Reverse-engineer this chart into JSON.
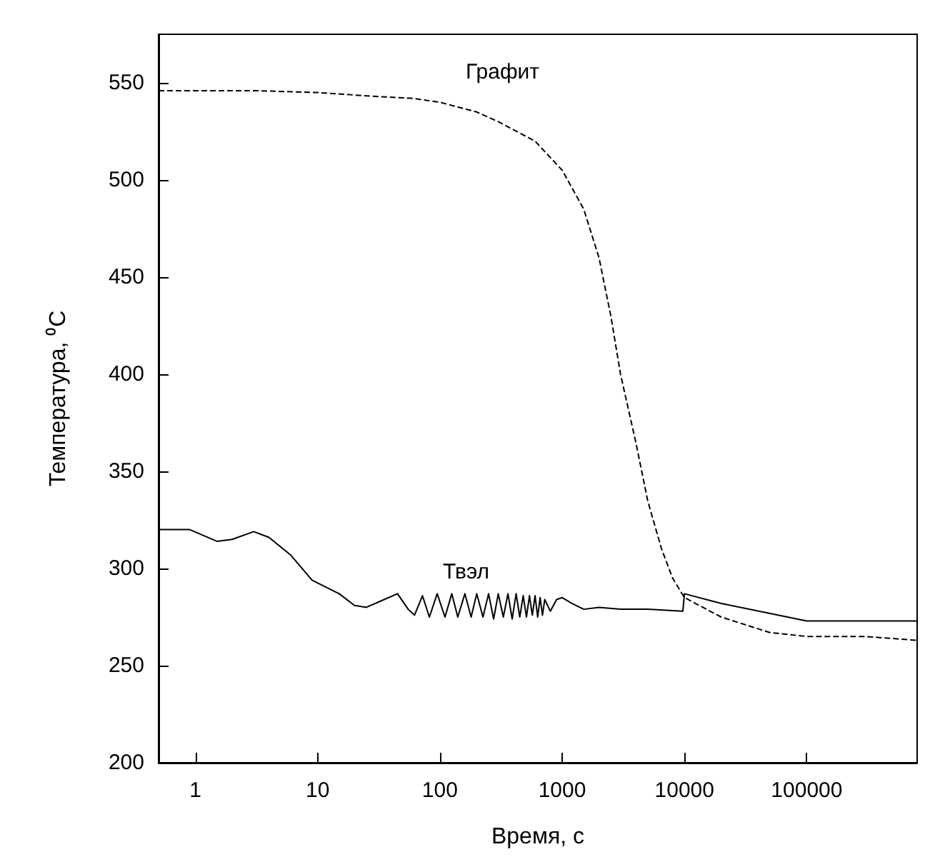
{
  "chart_data": {
    "type": "line",
    "xlabel": "Время, с",
    "ylabel": "Температура, ⁰C",
    "log": "x",
    "xlim": [
      0.5,
      800000
    ],
    "xticks": [
      1,
      10,
      100,
      1000,
      10000,
      100000
    ],
    "ylim": [
      200,
      575
    ],
    "yticks": [
      200,
      250,
      300,
      350,
      400,
      450,
      500,
      550
    ],
    "grid": false,
    "marker": "none",
    "annotations": [
      "Графит",
      "Твэл"
    ],
    "series": [
      {
        "color": "#000000",
        "line_style": "dashed",
        "x": [
          0.5,
          3,
          10,
          30,
          60,
          100,
          200,
          300,
          600,
          1000,
          1500,
          2000,
          2500,
          3000,
          4000,
          5000,
          6500,
          8000,
          10000,
          20000,
          50000,
          100000,
          300000,
          800000
        ],
        "values": [
          546,
          546,
          545,
          543,
          542,
          540,
          535,
          530,
          520,
          505,
          485,
          460,
          430,
          400,
          365,
          335,
          310,
          295,
          285,
          275,
          267,
          265,
          265,
          263
        ]
      },
      {
        "color": "#000000",
        "line_style": "solid",
        "x": [
          0.5,
          0.9,
          1.5,
          2,
          3,
          4,
          6,
          9,
          15,
          20,
          25,
          35,
          45,
          55,
          62,
          72,
          82,
          95,
          110,
          125,
          140,
          160,
          180,
          200,
          225,
          250,
          275,
          300,
          330,
          360,
          390,
          420,
          450,
          480,
          510,
          540,
          570,
          600,
          630,
          660,
          690,
          720,
          800,
          900,
          1000,
          1200,
          1500,
          2000,
          3000,
          5000,
          9500,
          9700,
          10000,
          20000,
          100000,
          800000
        ],
        "values": [
          320,
          320,
          314,
          315,
          319,
          316,
          307,
          294,
          287,
          281,
          280,
          284,
          287,
          279,
          276,
          286,
          275,
          287,
          275,
          287,
          275,
          287,
          275,
          287,
          275,
          287,
          274,
          287,
          275,
          287,
          274,
          287,
          275,
          286,
          275,
          286,
          276,
          286,
          275,
          285,
          276,
          284,
          278,
          284,
          285,
          282,
          279,
          280,
          279,
          279,
          278,
          278,
          287,
          282,
          273,
          273
        ]
      }
    ]
  }
}
